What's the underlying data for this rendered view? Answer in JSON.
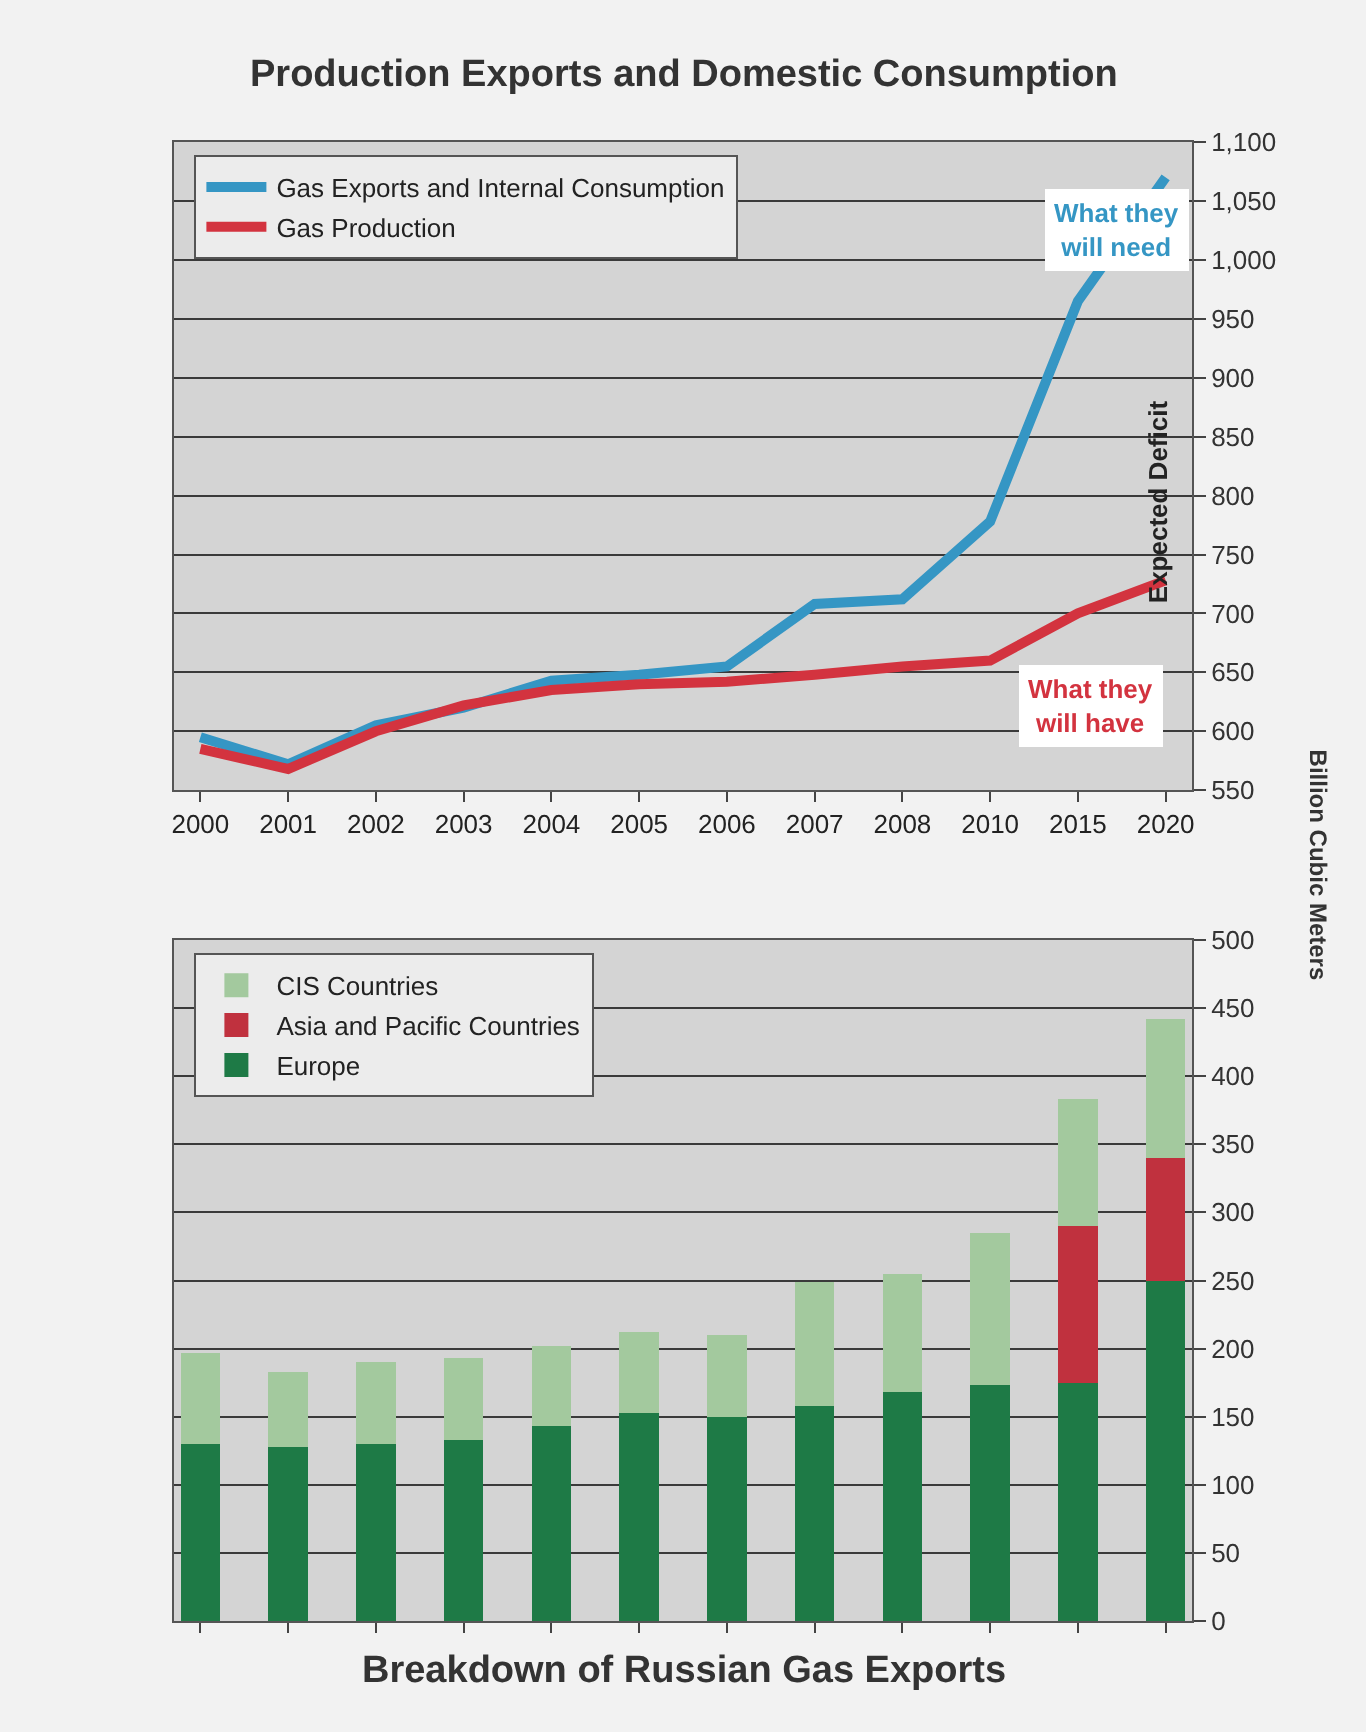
{
  "chart_data": [
    {
      "type": "line",
      "title": "Production Exports and Domestic Consumption",
      "ylabel": "Billion Cubic Meters",
      "categories": [
        "2000",
        "2001",
        "2002",
        "2003",
        "2004",
        "2005",
        "2006",
        "2007",
        "2008",
        "2010",
        "2015",
        "2020"
      ],
      "series": [
        {
          "name": "Gas Exports and Internal Consumption",
          "color": "#3596c4",
          "values": [
            595,
            572,
            605,
            620,
            643,
            648,
            655,
            708,
            712,
            778,
            965,
            1070
          ]
        },
        {
          "name": "Gas Production",
          "color": "#d3333f",
          "values": [
            585,
            568,
            600,
            622,
            635,
            640,
            642,
            648,
            655,
            660,
            700,
            728
          ]
        }
      ],
      "ylim": [
        550,
        1100
      ],
      "yticks": [
        550,
        600,
        650,
        700,
        750,
        800,
        850,
        900,
        950,
        {
          "value": 1000,
          "label": "1,000"
        },
        {
          "value": 1050,
          "label": "1,050"
        },
        {
          "value": 1100,
          "label": "1,100"
        }
      ],
      "annotations": [
        "What they will need",
        "What they will have",
        "Expected Deficit"
      ],
      "grid": "y",
      "legend": "top left",
      "marker": "none",
      "line_style": "solid"
    },
    {
      "type": "bar",
      "title": "Breakdown of Russian Gas Exports",
      "stacked": true,
      "categories": [
        "2000",
        "2001",
        "2002",
        "2003",
        "2004",
        "2005",
        "2006",
        "2007",
        "2008",
        "2010",
        "2015",
        "2020"
      ],
      "series": [
        {
          "name": "Europe",
          "color": "#1e7a46",
          "values": [
            130,
            128,
            130,
            133,
            143,
            153,
            150,
            158,
            168,
            173,
            175,
            250
          ]
        },
        {
          "name": "Asia and Pacific Countries",
          "color": "#c0313e",
          "values": [
            0,
            0,
            0,
            0,
            0,
            0,
            0,
            0,
            0,
            0,
            115,
            90
          ]
        },
        {
          "name": "CIS Countries",
          "color": "#a3c99e",
          "values": [
            67,
            55,
            60,
            60,
            59,
            59,
            60,
            91,
            87,
            112,
            93,
            102
          ]
        }
      ],
      "ylim": [
        0,
        500
      ],
      "yticks": [
        0,
        50,
        100,
        150,
        200,
        250,
        300,
        350,
        400,
        450,
        500
      ],
      "tick_labels": "y",
      "grid": "y",
      "legend": "top left"
    }
  ]
}
